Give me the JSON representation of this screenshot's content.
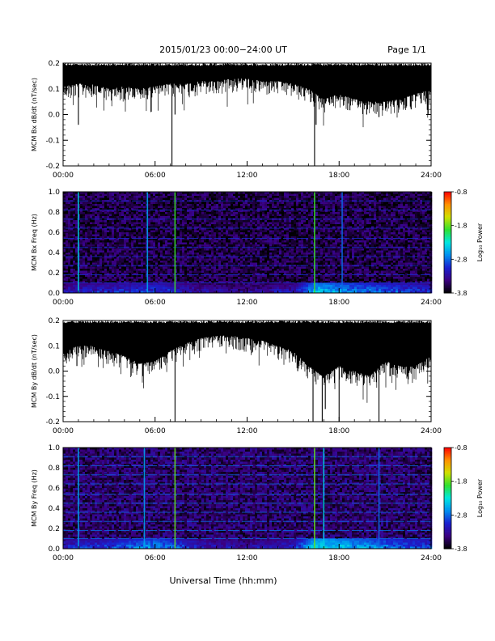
{
  "header": {
    "title": "2015/01/23  00:00−24:00 UT",
    "page": "Page 1/1"
  },
  "x_axis": {
    "label": "Universal Time (hh:mm)",
    "ticks": [
      "00:00",
      "06:00",
      "12:00",
      "18:00",
      "24:00"
    ],
    "range_hours": [
      0,
      24
    ]
  },
  "colorbar": {
    "label": "Log₁₀ Power",
    "ticks": [
      "-0.8",
      "-1.8",
      "-2.8",
      "-3.8"
    ],
    "range": [
      -3.8,
      -0.8
    ],
    "colormap": [
      "#000000",
      "#3b0080",
      "#1a20d0",
      "#0090f0",
      "#00e8e0",
      "#30e030",
      "#d0e000",
      "#ff9000",
      "#ff0000"
    ]
  },
  "chart_data": [
    {
      "type": "line",
      "ylabel": "MCM Bx dB/dt (nT/sec)",
      "ylim": [
        -0.2,
        0.2
      ],
      "yticks": [
        "-0.2",
        "-0.1",
        "0.0",
        "0.1",
        "0.2"
      ],
      "xlim": [
        0,
        24
      ],
      "color": "#000000",
      "envelope_x_hours": [
        0,
        1,
        2,
        3,
        4,
        5,
        6,
        7,
        8,
        9,
        10,
        11,
        12,
        13,
        14,
        15,
        16,
        17,
        18,
        19,
        20,
        21,
        22,
        23,
        24
      ],
      "envelope_low": [
        0.11,
        0.12,
        0.12,
        0.1,
        0.11,
        0.1,
        0.11,
        0.12,
        0.12,
        0.13,
        0.13,
        0.14,
        0.14,
        0.13,
        0.13,
        0.12,
        0.1,
        0.06,
        0.08,
        0.06,
        0.05,
        0.05,
        0.06,
        0.08,
        0.1
      ],
      "spikes": [
        [
          1.0,
          -0.04
        ],
        [
          5.5,
          0.06
        ],
        [
          7.1,
          -0.2
        ],
        [
          7.3,
          0.0
        ],
        [
          16.4,
          -0.2
        ],
        [
          16.5,
          -0.04
        ],
        [
          19.8,
          0.0
        ],
        [
          20.6,
          -0.01
        ],
        [
          22.7,
          0.02
        ]
      ]
    },
    {
      "type": "heatmap",
      "ylabel": "MCM Bx Freq (Hz)",
      "ylim": [
        0,
        1.0
      ],
      "yticks": [
        "0.0",
        "0.2",
        "0.4",
        "0.6",
        "0.8",
        "1.0"
      ],
      "xlim": [
        0,
        24
      ],
      "clim": [
        -3.8,
        -0.8
      ],
      "background_power": -3.6,
      "harmonic_lines_hz": [
        0.1,
        0.18,
        0.27,
        0.36,
        0.45,
        0.54,
        0.64,
        0.73,
        0.82,
        0.91,
        1.0
      ],
      "harmonic_power": -3.0,
      "vertical_events": [
        [
          1.0,
          -2.4
        ],
        [
          5.5,
          -2.6
        ],
        [
          7.3,
          -1.9
        ],
        [
          16.4,
          -1.9
        ],
        [
          18.2,
          -2.8
        ]
      ],
      "low_freq_activity": [
        [
          0,
          -3.1
        ],
        [
          3,
          -3.0
        ],
        [
          6,
          -2.9
        ],
        [
          9,
          -3.2
        ],
        [
          12,
          -3.3
        ],
        [
          15,
          -3.1
        ],
        [
          16.5,
          -2.4
        ],
        [
          18,
          -2.6
        ],
        [
          21,
          -2.8
        ],
        [
          24,
          -3.0
        ]
      ]
    },
    {
      "type": "line",
      "ylabel": "MCM By dB/dt (nT/sec)",
      "ylim": [
        -0.2,
        0.2
      ],
      "yticks": [
        "-0.2",
        "-0.1",
        "0.0",
        "0.1",
        "0.2"
      ],
      "xlim": [
        0,
        24
      ],
      "color": "#000000",
      "envelope_x_hours": [
        0,
        1,
        2,
        3,
        4,
        5,
        6,
        7,
        8,
        9,
        10,
        11,
        12,
        13,
        14,
        15,
        16,
        17,
        18,
        19,
        20,
        21,
        22,
        23,
        24
      ],
      "envelope_low": [
        0.08,
        0.1,
        0.1,
        0.08,
        0.06,
        0.03,
        0.04,
        0.08,
        0.11,
        0.13,
        0.14,
        0.14,
        0.13,
        0.12,
        0.1,
        0.08,
        0.02,
        -0.02,
        0.02,
        0.0,
        -0.02,
        0.04,
        0.02,
        0.02,
        0.06
      ],
      "spikes": [
        [
          0.9,
          0.02
        ],
        [
          5.2,
          -0.02
        ],
        [
          7.3,
          -0.2
        ],
        [
          15.3,
          0.0
        ],
        [
          16.3,
          -0.2
        ],
        [
          16.9,
          -0.2
        ],
        [
          17.1,
          -0.15
        ],
        [
          18.0,
          -0.2
        ],
        [
          20.6,
          -0.2
        ]
      ]
    },
    {
      "type": "heatmap",
      "ylabel": "MCM By Freq (Hz)",
      "ylim": [
        0,
        1.0
      ],
      "yticks": [
        "0.0",
        "0.2",
        "0.4",
        "0.6",
        "0.8",
        "1.0"
      ],
      "xlim": [
        0,
        24
      ],
      "clim": [
        -3.8,
        -0.8
      ],
      "background_power": -3.5,
      "harmonic_lines_hz": [
        0.1,
        0.18,
        0.27,
        0.36,
        0.45,
        0.54,
        0.64,
        0.73,
        0.82,
        0.91,
        1.0
      ],
      "harmonic_power": -2.8,
      "vertical_events": [
        [
          1.0,
          -2.6
        ],
        [
          5.3,
          -2.6
        ],
        [
          7.3,
          -1.8
        ],
        [
          16.4,
          -1.8
        ],
        [
          17.0,
          -2.4
        ],
        [
          20.6,
          -2.8
        ]
      ],
      "low_freq_activity": [
        [
          0,
          -3.0
        ],
        [
          3,
          -2.9
        ],
        [
          6,
          -2.6
        ],
        [
          9,
          -3.1
        ],
        [
          12,
          -3.2
        ],
        [
          15,
          -3.0
        ],
        [
          16.5,
          -2.3
        ],
        [
          18,
          -2.4
        ],
        [
          21,
          -2.7
        ],
        [
          24,
          -2.9
        ]
      ]
    }
  ]
}
